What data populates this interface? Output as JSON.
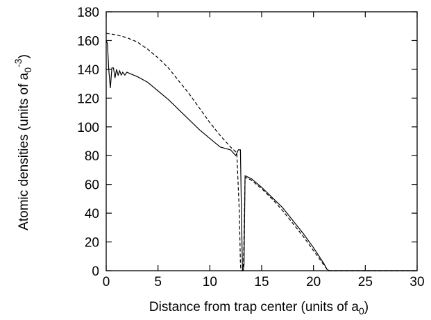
{
  "chart_data": {
    "type": "line",
    "title": "",
    "xlabel": "Distance from trap center (units of a₀)",
    "ylabel": "Atomic densities (units of a₀⁻³)",
    "xlim": [
      0,
      30
    ],
    "ylim": [
      0,
      180
    ],
    "xticks": [
      0,
      5,
      10,
      15,
      20,
      25,
      30
    ],
    "yticks": [
      0,
      20,
      40,
      60,
      80,
      100,
      120,
      140,
      160,
      180
    ],
    "grid": false,
    "legend": "none",
    "series": [
      {
        "style": "solid",
        "x": [
          0.0,
          0.12,
          0.25,
          0.4,
          0.55,
          0.7,
          0.85,
          1.0,
          1.15,
          1.3,
          1.45,
          1.6,
          1.8,
          2.0,
          2.3,
          3.0,
          4.0,
          5.0,
          6.0,
          7.0,
          8.0,
          9.0,
          10.0,
          11.0,
          12.0,
          12.5,
          12.75,
          12.95,
          13.05,
          13.15,
          13.22,
          13.3,
          13.4,
          14.0,
          15.0,
          16.0,
          17.0,
          18.0,
          19.0,
          20.0,
          21.0,
          21.3,
          21.5,
          22.0,
          25.0,
          30.0
        ],
        "y": [
          160,
          158,
          140,
          127,
          141,
          141,
          134,
          140,
          136,
          139,
          136,
          138,
          136,
          138,
          137,
          135,
          131,
          125,
          119,
          112,
          105,
          98,
          92,
          86,
          84,
          80,
          84,
          84,
          40,
          0,
          0,
          4,
          66,
          64,
          58,
          51,
          44,
          35,
          26,
          16,
          5,
          1,
          0,
          0,
          0,
          0
        ]
      },
      {
        "style": "dashed",
        "x": [
          0,
          1,
          2,
          3,
          4,
          5,
          6,
          7,
          8,
          9,
          10,
          11,
          12,
          12.6,
          12.85,
          12.95,
          13.0,
          13.05,
          13.15,
          13.25,
          13.4,
          14,
          15,
          16,
          17,
          18,
          19,
          20,
          21,
          21.4,
          22,
          25,
          30
        ],
        "y": [
          165,
          164,
          162,
          159,
          154,
          148,
          141,
          132,
          123,
          113,
          103,
          94,
          86,
          82,
          40,
          5,
          0,
          0,
          0,
          5,
          65,
          63,
          57,
          50,
          42,
          33,
          24,
          14,
          4,
          0,
          0,
          0,
          0
        ]
      }
    ]
  }
}
